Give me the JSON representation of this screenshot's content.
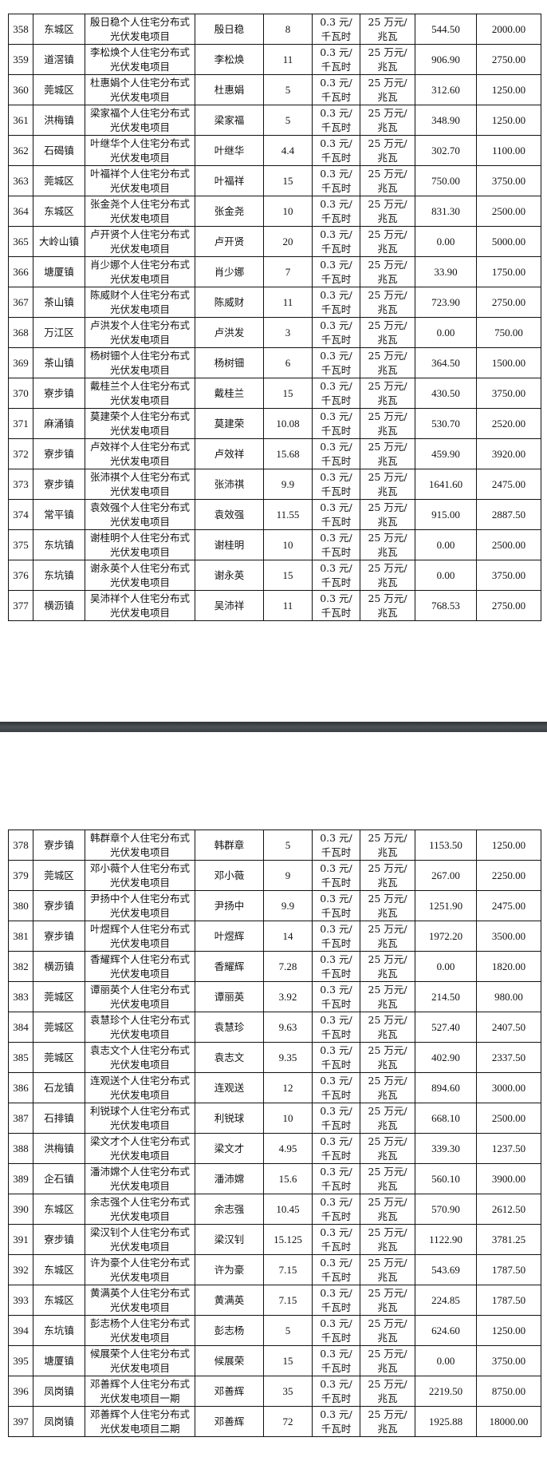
{
  "pages": [
    {
      "rows": [
        [
          "358",
          "东城区",
          "殷日稳个人住宅分布式光伏发电项目",
          "殷日稳",
          "8",
          "0.3 元/千瓦时",
          "25 万元/兆瓦",
          "544.50",
          "2000.00"
        ],
        [
          "359",
          "道滘镇",
          "李松焕个人住宅分布式光伏发电项目",
          "李松焕",
          "11",
          "0.3 元/千瓦时",
          "25 万元/兆瓦",
          "906.90",
          "2750.00"
        ],
        [
          "360",
          "莞城区",
          "杜惠娟个人住宅分布式光伏发电项目",
          "杜惠娟",
          "5",
          "0.3 元/千瓦时",
          "25 万元/兆瓦",
          "312.60",
          "1250.00"
        ],
        [
          "361",
          "洪梅镇",
          "梁家福个人住宅分布式光伏发电项目",
          "梁家福",
          "5",
          "0.3 元/千瓦时",
          "25 万元/兆瓦",
          "348.90",
          "1250.00"
        ],
        [
          "362",
          "石碣镇",
          "叶继华个人住宅分布式光伏发电项目",
          "叶继华",
          "4.4",
          "0.3 元/千瓦时",
          "25 万元/兆瓦",
          "302.70",
          "1100.00"
        ],
        [
          "363",
          "莞城区",
          "叶福祥个人住宅分布式光伏发电项目",
          "叶福祥",
          "15",
          "0.3 元/千瓦时",
          "25 万元/兆瓦",
          "750.00",
          "3750.00"
        ],
        [
          "364",
          "东城区",
          "张金尧个人住宅分布式光伏发电项目",
          "张金尧",
          "10",
          "0.3 元/千瓦时",
          "25 万元/兆瓦",
          "831.30",
          "2500.00"
        ],
        [
          "365",
          "大岭山镇",
          "卢开贤个人住宅分布式光伏发电项目",
          "卢开贤",
          "20",
          "0.3 元/千瓦时",
          "25 万元/兆瓦",
          "0.00",
          "5000.00"
        ],
        [
          "366",
          "塘厦镇",
          "肖少娜个人住宅分布式光伏发电项目",
          "肖少娜",
          "7",
          "0.3 元/千瓦时",
          "25 万元/兆瓦",
          "33.90",
          "1750.00"
        ],
        [
          "367",
          "茶山镇",
          "陈威财个人住宅分布式光伏发电项目",
          "陈威财",
          "11",
          "0.3 元/千瓦时",
          "25 万元/兆瓦",
          "723.90",
          "2750.00"
        ],
        [
          "368",
          "万江区",
          "卢洪发个人住宅分布式光伏发电项目",
          "卢洪发",
          "3",
          "0.3 元/千瓦时",
          "25 万元/兆瓦",
          "0.00",
          "750.00"
        ],
        [
          "369",
          "茶山镇",
          "杨树钿个人住宅分布式光伏发电项目",
          "杨树钿",
          "6",
          "0.3 元/千瓦时",
          "25 万元/兆瓦",
          "364.50",
          "1500.00"
        ],
        [
          "370",
          "寮步镇",
          "戴桂兰个人住宅分布式光伏发电项目",
          "戴桂兰",
          "15",
          "0.3 元/千瓦时",
          "25 万元/兆瓦",
          "430.50",
          "3750.00"
        ],
        [
          "371",
          "麻涌镇",
          "莫建荣个人住宅分布式光伏发电项目",
          "莫建荣",
          "10.08",
          "0.3 元/千瓦时",
          "25 万元/兆瓦",
          "530.70",
          "2520.00"
        ],
        [
          "372",
          "寮步镇",
          "卢效祥个人住宅分布式光伏发电项目",
          "卢效祥",
          "15.68",
          "0.3 元/千瓦时",
          "25 万元/兆瓦",
          "459.90",
          "3920.00"
        ],
        [
          "373",
          "寮步镇",
          "张沛祺个人住宅分布式光伏发电项目",
          "张沛祺",
          "9.9",
          "0.3 元/千瓦时",
          "25 万元/兆瓦",
          "1641.60",
          "2475.00"
        ],
        [
          "374",
          "常平镇",
          "袁效强个人住宅分布式光伏发电项目",
          "袁效强",
          "11.55",
          "0.3 元/千瓦时",
          "25 万元/兆瓦",
          "915.00",
          "2887.50"
        ],
        [
          "375",
          "东坑镇",
          "谢桂明个人住宅分布式光伏发电项目",
          "谢桂明",
          "10",
          "0.3 元/千瓦时",
          "25 万元/兆瓦",
          "0.00",
          "2500.00"
        ],
        [
          "376",
          "东坑镇",
          "谢永英个人住宅分布式光伏发电项目",
          "谢永英",
          "15",
          "0.3 元/千瓦时",
          "25 万元/兆瓦",
          "0.00",
          "3750.00"
        ],
        [
          "377",
          "横沥镇",
          "吴沛祥个人住宅分布式光伏发电项目",
          "吴沛祥",
          "11",
          "0.3 元/千瓦时",
          "25 万元/兆瓦",
          "768.53",
          "2750.00"
        ]
      ]
    },
    {
      "rows": [
        [
          "378",
          "寮步镇",
          "韩群章个人住宅分布式光伏发电项目",
          "韩群章",
          "5",
          "0.3 元/千瓦时",
          "25 万元/兆瓦",
          "1153.50",
          "1250.00"
        ],
        [
          "379",
          "莞城区",
          "邓小薇个人住宅分布式光伏发电项目",
          "邓小薇",
          "9",
          "0.3 元/千瓦时",
          "25 万元/兆瓦",
          "267.00",
          "2250.00"
        ],
        [
          "380",
          "寮步镇",
          "尹扬中个人住宅分布式光伏发电项目",
          "尹扬中",
          "9.9",
          "0.3 元/千瓦时",
          "25 万元/兆瓦",
          "1251.90",
          "2475.00"
        ],
        [
          "381",
          "寮步镇",
          "叶煜辉个人住宅分布式光伏发电项目",
          "叶煜辉",
          "14",
          "0.3 元/千瓦时",
          "25 万元/兆瓦",
          "1972.20",
          "3500.00"
        ],
        [
          "382",
          "横沥镇",
          "香耀辉个人住宅分布式光伏发电项目",
          "香耀辉",
          "7.28",
          "0.3 元/千瓦时",
          "25 万元/兆瓦",
          "0.00",
          "1820.00"
        ],
        [
          "383",
          "莞城区",
          "谭丽英个人住宅分布式光伏发电项目",
          "谭丽英",
          "3.92",
          "0.3 元/千瓦时",
          "25 万元/兆瓦",
          "214.50",
          "980.00"
        ],
        [
          "384",
          "莞城区",
          "袁慧珍个人住宅分布式光伏发电项目",
          "袁慧珍",
          "9.63",
          "0.3 元/千瓦时",
          "25 万元/兆瓦",
          "527.40",
          "2407.50"
        ],
        [
          "385",
          "莞城区",
          "袁志文个人住宅分布式光伏发电项目",
          "袁志文",
          "9.35",
          "0.3 元/千瓦时",
          "25 万元/兆瓦",
          "402.90",
          "2337.50"
        ],
        [
          "386",
          "石龙镇",
          "连观送个人住宅分布式光伏发电项目",
          "连观送",
          "12",
          "0.3 元/千瓦时",
          "25 万元/兆瓦",
          "894.60",
          "3000.00"
        ],
        [
          "387",
          "石排镇",
          "利锐球个人住宅分布式光伏发电项目",
          "利锐球",
          "10",
          "0.3 元/千瓦时",
          "25 万元/兆瓦",
          "668.10",
          "2500.00"
        ],
        [
          "388",
          "洪梅镇",
          "梁文才个人住宅分布式光伏发电项目",
          "梁文才",
          "4.95",
          "0.3 元/千瓦时",
          "25 万元/兆瓦",
          "339.30",
          "1237.50"
        ],
        [
          "389",
          "企石镇",
          "潘沛嫦个人住宅分布式光伏发电项目",
          "潘沛嫦",
          "15.6",
          "0.3 元/千瓦时",
          "25 万元/兆瓦",
          "560.10",
          "3900.00"
        ],
        [
          "390",
          "东城区",
          "余志强个人住宅分布式光伏发电项目",
          "余志强",
          "10.45",
          "0.3 元/千瓦时",
          "25 万元/兆瓦",
          "570.90",
          "2612.50"
        ],
        [
          "391",
          "寮步镇",
          "梁汉钊个人住宅分布式光伏发电项目",
          "梁汉钊",
          "15.125",
          "0.3 元/千瓦时",
          "25 万元/兆瓦",
          "1122.90",
          "3781.25"
        ],
        [
          "392",
          "东城区",
          "许为豪个人住宅分布式光伏发电项目",
          "许为豪",
          "7.15",
          "0.3 元/千瓦时",
          "25 万元/兆瓦",
          "543.69",
          "1787.50"
        ],
        [
          "393",
          "东城区",
          "黄满英个人住宅分布式光伏发电项目",
          "黄满英",
          "7.15",
          "0.3 元/千瓦时",
          "25 万元/兆瓦",
          "224.85",
          "1787.50"
        ],
        [
          "394",
          "东坑镇",
          "彭志杨个人住宅分布式光伏发电项目",
          "彭志杨",
          "5",
          "0.3 元/千瓦时",
          "25 万元/兆瓦",
          "624.60",
          "1250.00"
        ],
        [
          "395",
          "塘厦镇",
          "候展荣个人住宅分布式光伏发电项目",
          "候展荣",
          "15",
          "0.3 元/千瓦时",
          "25 万元/兆瓦",
          "0.00",
          "3750.00"
        ],
        [
          "396",
          "凤岗镇",
          "邓善辉个人住宅分布式光伏发电项目一期",
          "邓善辉",
          "35",
          "0.3 元/千瓦时",
          "25 万元/兆瓦",
          "2219.50",
          "8750.00"
        ],
        [
          "397",
          "凤岗镇",
          "邓善辉个人住宅分布式光伏发电项目二期",
          "邓善辉",
          "72",
          "0.3 元/千瓦时",
          "25 万元/兆瓦",
          "1925.88",
          "18000.00"
        ]
      ]
    }
  ]
}
